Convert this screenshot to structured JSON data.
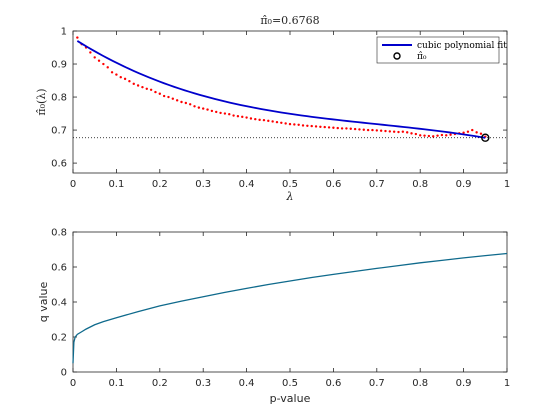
{
  "chart_data": [
    {
      "type": "scatter",
      "title": "π̂₀=0.6768",
      "xlabel": "λ",
      "ylabel": "π̂₀(λ)",
      "xlim": [
        0,
        1
      ],
      "ylim": [
        0.57,
        1.0
      ],
      "xticks": [
        0,
        0.1,
        0.2,
        0.3,
        0.4,
        0.5,
        0.6,
        0.7,
        0.8,
        0.9,
        1
      ],
      "xtick_labels": [
        "0",
        "0.1",
        "0.2",
        "0.3",
        "0.4",
        "0.5",
        "0.6",
        "0.7",
        "0.8",
        "0.9",
        "1"
      ],
      "yticks": [
        0.6,
        0.7,
        0.8,
        0.9,
        1.0
      ],
      "ytick_labels": [
        "0.6",
        "0.7",
        "0.8",
        "0.9",
        "1"
      ],
      "grid": false,
      "legend_position": "top-right",
      "series": [
        {
          "type": "scatter",
          "color": "#ff0000",
          "x": [
            0.01,
            0.02,
            0.03,
            0.04,
            0.05,
            0.06,
            0.07,
            0.08,
            0.09,
            0.1,
            0.11,
            0.12,
            0.13,
            0.14,
            0.15,
            0.16,
            0.17,
            0.18,
            0.19,
            0.2,
            0.21,
            0.22,
            0.23,
            0.24,
            0.25,
            0.26,
            0.27,
            0.28,
            0.29,
            0.3,
            0.31,
            0.32,
            0.33,
            0.34,
            0.35,
            0.36,
            0.37,
            0.38,
            0.39,
            0.4,
            0.41,
            0.42,
            0.43,
            0.44,
            0.45,
            0.46,
            0.47,
            0.48,
            0.49,
            0.5,
            0.51,
            0.52,
            0.53,
            0.54,
            0.55,
            0.56,
            0.57,
            0.58,
            0.59,
            0.6,
            0.61,
            0.62,
            0.63,
            0.64,
            0.65,
            0.66,
            0.67,
            0.68,
            0.69,
            0.7,
            0.71,
            0.72,
            0.73,
            0.74,
            0.75,
            0.76,
            0.77,
            0.78,
            0.79,
            0.8,
            0.81,
            0.82,
            0.83,
            0.84,
            0.85,
            0.86,
            0.87,
            0.88,
            0.89,
            0.9,
            0.91,
            0.92,
            0.93,
            0.94,
            0.95
          ],
          "y": [
            0.98,
            0.96,
            0.95,
            0.935,
            0.92,
            0.91,
            0.9,
            0.89,
            0.875,
            0.868,
            0.86,
            0.855,
            0.848,
            0.84,
            0.835,
            0.83,
            0.825,
            0.822,
            0.815,
            0.81,
            0.803,
            0.8,
            0.795,
            0.79,
            0.785,
            0.782,
            0.778,
            0.772,
            0.768,
            0.765,
            0.762,
            0.758,
            0.755,
            0.752,
            0.75,
            0.748,
            0.744,
            0.742,
            0.74,
            0.738,
            0.735,
            0.733,
            0.731,
            0.73,
            0.728,
            0.726,
            0.724,
            0.722,
            0.72,
            0.718,
            0.717,
            0.716,
            0.714,
            0.713,
            0.712,
            0.711,
            0.71,
            0.709,
            0.708,
            0.707,
            0.706,
            0.705,
            0.705,
            0.704,
            0.703,
            0.702,
            0.701,
            0.7,
            0.7,
            0.699,
            0.698,
            0.697,
            0.696,
            0.695,
            0.694,
            0.695,
            0.693,
            0.69,
            0.688,
            0.684,
            0.683,
            0.682,
            0.681,
            0.683,
            0.685,
            0.684,
            0.686,
            0.688,
            0.69,
            0.692,
            0.695,
            0.7,
            0.693,
            0.689,
            0.68
          ]
        },
        {
          "name": "cubic polynomial fit",
          "type": "line",
          "color": "#0000cc",
          "coefficients": [
            0.9782,
            -0.8386,
            0.9984,
            -0.4736
          ],
          "x_range": [
            0.01,
            0.95
          ]
        },
        {
          "name": "π̂₀",
          "type": "marker",
          "color": "#000000",
          "x": [
            0.95
          ],
          "y": [
            0.6768
          ]
        }
      ],
      "reference_line": {
        "y": 0.6768,
        "style": "dotted",
        "color": "#000000"
      }
    },
    {
      "type": "line",
      "xlabel": "p-value",
      "ylabel": "q value",
      "xlim": [
        0,
        1
      ],
      "ylim": [
        0,
        0.8
      ],
      "xticks": [
        0,
        0.1,
        0.2,
        0.3,
        0.4,
        0.5,
        0.6,
        0.7,
        0.8,
        0.9,
        1
      ],
      "xtick_labels": [
        "0",
        "0.1",
        "0.2",
        "0.3",
        "0.4",
        "0.5",
        "0.6",
        "0.7",
        "0.8",
        "0.9",
        "1"
      ],
      "yticks": [
        0,
        0.2,
        0.4,
        0.6,
        0.8
      ],
      "ytick_labels": [
        "0",
        "0.2",
        "0.4",
        "0.6",
        "0.8"
      ],
      "grid": false,
      "series": [
        {
          "color": "#0f6a8c",
          "x": [
            0,
            0.002,
            0.005,
            0.01,
            0.02,
            0.03,
            0.05,
            0.07,
            0.1,
            0.15,
            0.2,
            0.25,
            0.3,
            0.35,
            0.4,
            0.45,
            0.5,
            0.55,
            0.6,
            0.65,
            0.7,
            0.75,
            0.8,
            0.85,
            0.9,
            0.95,
            1.0
          ],
          "y": [
            0.05,
            0.17,
            0.2,
            0.215,
            0.23,
            0.245,
            0.27,
            0.288,
            0.31,
            0.345,
            0.378,
            0.405,
            0.43,
            0.455,
            0.478,
            0.5,
            0.52,
            0.54,
            0.558,
            0.575,
            0.592,
            0.608,
            0.624,
            0.638,
            0.652,
            0.665,
            0.677
          ]
        }
      ]
    }
  ]
}
